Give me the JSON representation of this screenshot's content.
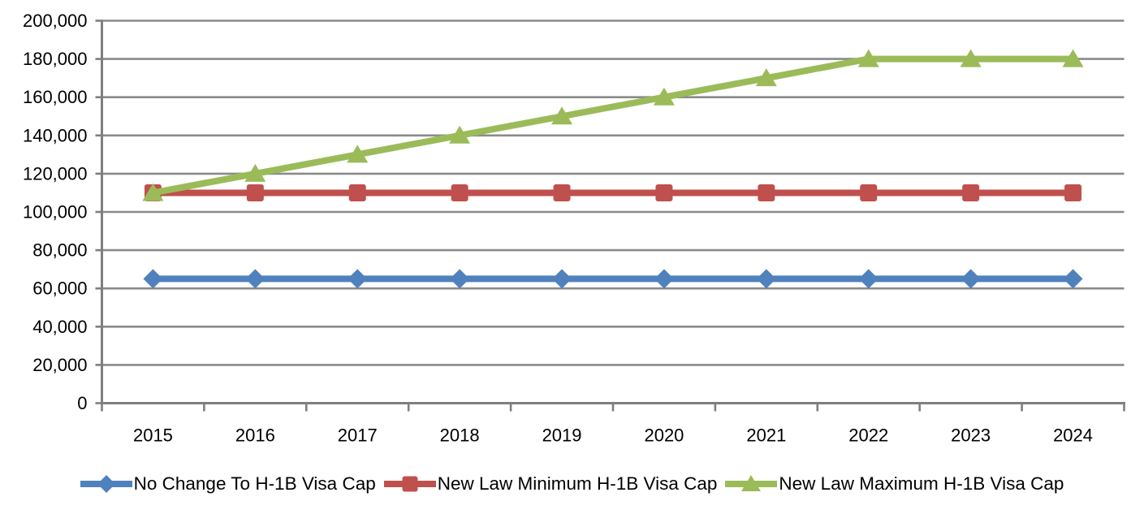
{
  "chart_data": {
    "type": "line",
    "title": "",
    "xlabel": "",
    "ylabel": "",
    "categories": [
      "2015",
      "2016",
      "2017",
      "2018",
      "2019",
      "2020",
      "2021",
      "2022",
      "2023",
      "2024"
    ],
    "ylim": [
      0,
      200000
    ],
    "y_tick_interval": 20000,
    "y_ticks": [
      {
        "value": 0,
        "label": "0"
      },
      {
        "value": 20000,
        "label": "20,000"
      },
      {
        "value": 40000,
        "label": "40,000"
      },
      {
        "value": 60000,
        "label": "60,000"
      },
      {
        "value": 80000,
        "label": "80,000"
      },
      {
        "value": 100000,
        "label": "100,000"
      },
      {
        "value": 120000,
        "label": "120,000"
      },
      {
        "value": 140000,
        "label": "140,000"
      },
      {
        "value": 160000,
        "label": "160,000"
      },
      {
        "value": 180000,
        "label": "180,000"
      },
      {
        "value": 200000,
        "label": "200,000"
      }
    ],
    "grid": "horizontal-on",
    "legend_position": "bottom",
    "series": [
      {
        "name": "No Change To H-1B Visa Cap",
        "marker": "diamond",
        "color": "#4F81BD",
        "values": [
          65000,
          65000,
          65000,
          65000,
          65000,
          65000,
          65000,
          65000,
          65000,
          65000
        ]
      },
      {
        "name": "New Law Minimum H-1B Visa Cap",
        "marker": "square",
        "color": "#C0504D",
        "values": [
          110000,
          110000,
          110000,
          110000,
          110000,
          110000,
          110000,
          110000,
          110000,
          110000
        ]
      },
      {
        "name": "New Law Maximum H-1B Visa Cap",
        "marker": "triangle",
        "color": "#9BBB59",
        "values": [
          110000,
          120000,
          130000,
          140000,
          150000,
          160000,
          170000,
          180000,
          180000,
          180000
        ]
      }
    ],
    "colors": {
      "gridline": "#8A8A8A",
      "axis": "#7F7F7F",
      "text": "#000000",
      "background": "#FFFFFF"
    }
  }
}
